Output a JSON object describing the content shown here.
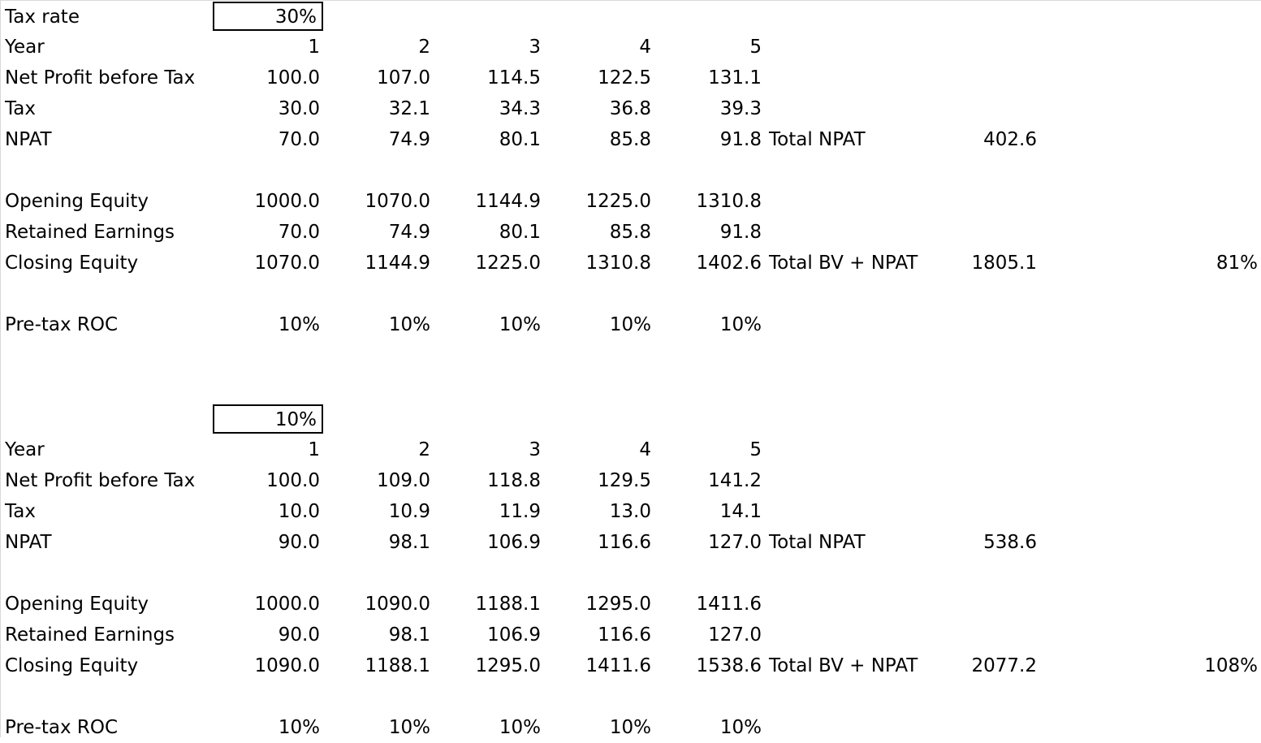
{
  "top_label": "Tax rate",
  "sections": [
    {
      "tax_input": "30%",
      "rows": {
        "year": {
          "label": "Year",
          "values": [
            "1",
            "2",
            "3",
            "4",
            "5"
          ]
        },
        "npbt": {
          "label": "Net Profit before Tax",
          "values": [
            "100.0",
            "107.0",
            "114.5",
            "122.5",
            "131.1"
          ]
        },
        "tax": {
          "label": "Tax",
          "values": [
            "30.0",
            "32.1",
            "34.3",
            "36.8",
            "39.3"
          ]
        },
        "npat": {
          "label": "NPAT",
          "values": [
            "70.0",
            "74.9",
            "80.1",
            "85.8",
            "91.8"
          ]
        },
        "opening": {
          "label": "Opening Equity",
          "values": [
            "1000.0",
            "1070.0",
            "1144.9",
            "1225.0",
            "1310.8"
          ]
        },
        "retained": {
          "label": "Retained Earnings",
          "values": [
            "70.0",
            "74.9",
            "80.1",
            "85.8",
            "91.8"
          ]
        },
        "closing": {
          "label": "Closing Equity",
          "values": [
            "1070.0",
            "1144.9",
            "1225.0",
            "1310.8",
            "1402.6"
          ]
        },
        "roc": {
          "label": "Pre-tax ROC",
          "values": [
            "10%",
            "10%",
            "10%",
            "10%",
            "10%"
          ]
        }
      },
      "total_npat_label": "Total NPAT",
      "total_npat_value": "402.6",
      "total_bv_label": "Total BV + NPAT",
      "total_bv_value": "1805.1",
      "total_bv_pct": "81%"
    },
    {
      "tax_input": "10%",
      "rows": {
        "year": {
          "label": "Year",
          "values": [
            "1",
            "2",
            "3",
            "4",
            "5"
          ]
        },
        "npbt": {
          "label": "Net Profit before Tax",
          "values": [
            "100.0",
            "109.0",
            "118.8",
            "129.5",
            "141.2"
          ]
        },
        "tax": {
          "label": "Tax",
          "values": [
            "10.0",
            "10.9",
            "11.9",
            "13.0",
            "14.1"
          ]
        },
        "npat": {
          "label": "NPAT",
          "values": [
            "90.0",
            "98.1",
            "106.9",
            "116.6",
            "127.0"
          ]
        },
        "opening": {
          "label": "Opening Equity",
          "values": [
            "1000.0",
            "1090.0",
            "1188.1",
            "1295.0",
            "1411.6"
          ]
        },
        "retained": {
          "label": "Retained Earnings",
          "values": [
            "90.0",
            "98.1",
            "106.9",
            "116.6",
            "127.0"
          ]
        },
        "closing": {
          "label": "Closing Equity",
          "values": [
            "1090.0",
            "1188.1",
            "1295.0",
            "1411.6",
            "1538.6"
          ]
        },
        "roc": {
          "label": "Pre-tax ROC",
          "values": [
            "10%",
            "10%",
            "10%",
            "10%",
            "10%"
          ]
        }
      },
      "total_npat_label": "Total NPAT",
      "total_npat_value": "538.6",
      "total_bv_label": "Total BV + NPAT",
      "total_bv_value": "2077.2",
      "total_bv_pct": "108%"
    }
  ]
}
